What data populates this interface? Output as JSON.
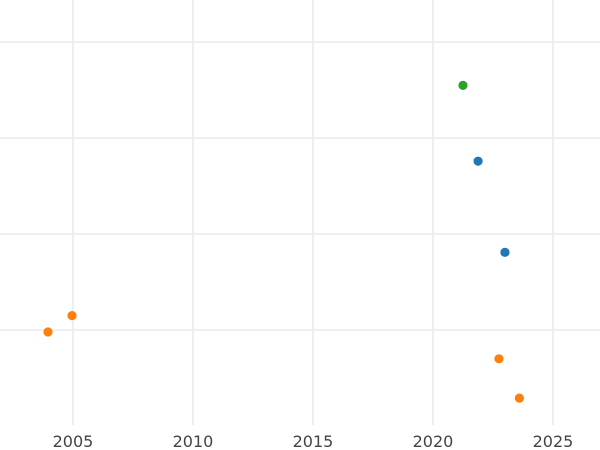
{
  "chart_data": {
    "type": "scatter",
    "title": "",
    "xlabel": "",
    "ylabel": "",
    "xlim": [
      2001.96,
      2026.96
    ],
    "ylim": [
      -0.99,
      3.44
    ],
    "x_ticks": [
      2005,
      2010,
      2015,
      2020,
      2025
    ],
    "x_tick_labels": [
      "2005",
      "2010",
      "2015",
      "2020",
      "2025"
    ],
    "y_gridlines": [
      0,
      1,
      2,
      3
    ],
    "y_tick_labels_shown": false,
    "grid": true,
    "legend": "none",
    "series": [
      {
        "color": "#2ca02c",
        "points": [
          {
            "x": 2021.25,
            "y": 2.55
          }
        ]
      },
      {
        "color": "#1f77b4",
        "points": [
          {
            "x": 2021.88,
            "y": 1.76
          },
          {
            "x": 2023.0,
            "y": 0.81
          }
        ]
      },
      {
        "color": "#ff7f0e",
        "points": [
          {
            "x": 2004.96,
            "y": 0.15
          },
          {
            "x": 2003.96,
            "y": -0.02
          },
          {
            "x": 2022.75,
            "y": -0.3
          },
          {
            "x": 2023.6,
            "y": -0.71
          }
        ]
      }
    ]
  }
}
